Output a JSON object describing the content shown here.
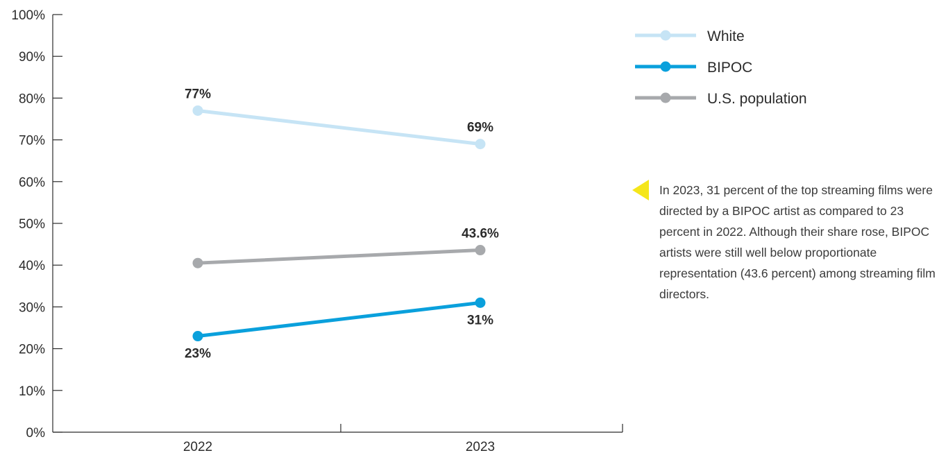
{
  "chart_data": {
    "type": "line",
    "categories": [
      "2022",
      "2023"
    ],
    "series": [
      {
        "name": "White",
        "values": [
          77,
          69
        ],
        "labels": [
          "77%",
          "69%"
        ],
        "label_pos": [
          "above",
          "above"
        ],
        "color": "#c6e4f5"
      },
      {
        "name": "BIPOC",
        "values": [
          23,
          31
        ],
        "labels": [
          "23%",
          "31%"
        ],
        "label_pos": [
          "below",
          "below"
        ],
        "color": "#0aa0dc"
      },
      {
        "name": "U.S. population",
        "values": [
          40.5,
          43.6
        ],
        "labels": [
          "",
          "43.6%"
        ],
        "label_pos": [
          "above",
          "above"
        ],
        "color": "#a7a9ac"
      }
    ],
    "ylim": [
      0,
      100
    ],
    "yticks": [
      "0%",
      "10%",
      "20%",
      "30%",
      "40%",
      "50%",
      "60%",
      "70%",
      "80%",
      "90%",
      "100%"
    ],
    "ytick_values": [
      0,
      10,
      20,
      30,
      40,
      50,
      60,
      70,
      80,
      90,
      100
    ],
    "title": "",
    "xlabel": "",
    "ylabel": "",
    "legend_position": "top-right",
    "grid": false
  },
  "annotation": {
    "text": "In 2023, 31 percent of the top streaming films were directed by a BIPOC artist as compared to 23 percent in 2022. Although their share rose, BIPOC artists were still well below proportionate representation (43.6 percent) among streaming film directors.",
    "marker_color": "#f5e61b"
  },
  "colors": {
    "axis": "#2b2b2b",
    "text": "#2b2b2b"
  }
}
